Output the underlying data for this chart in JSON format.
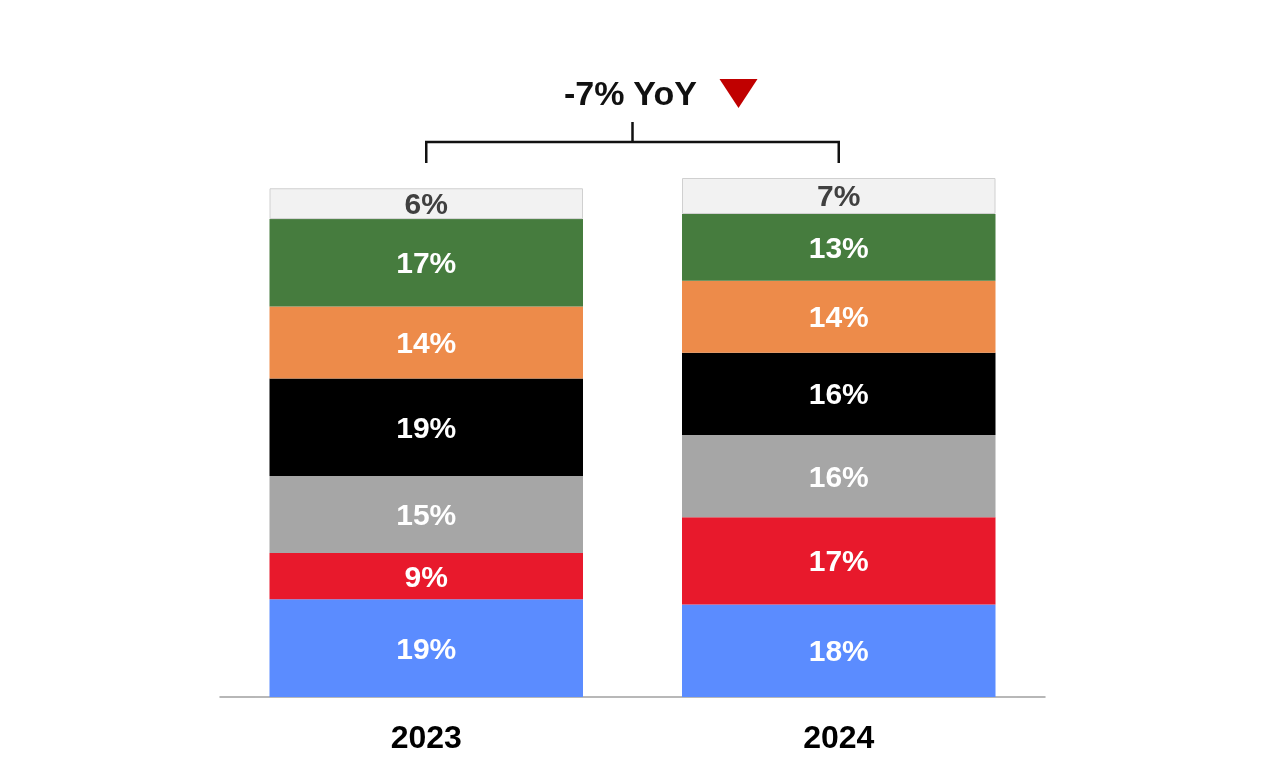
{
  "chart_data": {
    "type": "bar",
    "stacked": true,
    "categories": [
      "2023",
      "2024"
    ],
    "series": [
      {
        "color": "#5b8cff",
        "values": [
          19,
          18
        ],
        "value_labels": [
          "19%",
          "18%"
        ]
      },
      {
        "color": "#e8192c",
        "values": [
          9,
          17
        ],
        "value_labels": [
          "9%",
          "17%"
        ]
      },
      {
        "color": "#a6a6a6",
        "values": [
          15,
          16
        ],
        "value_labels": [
          "15%",
          "16%"
        ]
      },
      {
        "color": "#000000",
        "values": [
          19,
          16
        ],
        "value_labels": [
          "19%",
          "16%"
        ]
      },
      {
        "color": "#ed8b4a",
        "values": [
          14,
          14
        ],
        "value_labels": [
          "14%",
          "14%"
        ]
      },
      {
        "color": "#467c3e",
        "values": [
          17,
          13
        ],
        "value_labels": [
          "17%",
          "13%"
        ]
      },
      {
        "color": "#f2f2f2",
        "values": [
          6,
          7
        ],
        "value_labels": [
          "6%",
          "7%"
        ]
      }
    ],
    "annotations": [
      "-7% YoY"
    ]
  }
}
